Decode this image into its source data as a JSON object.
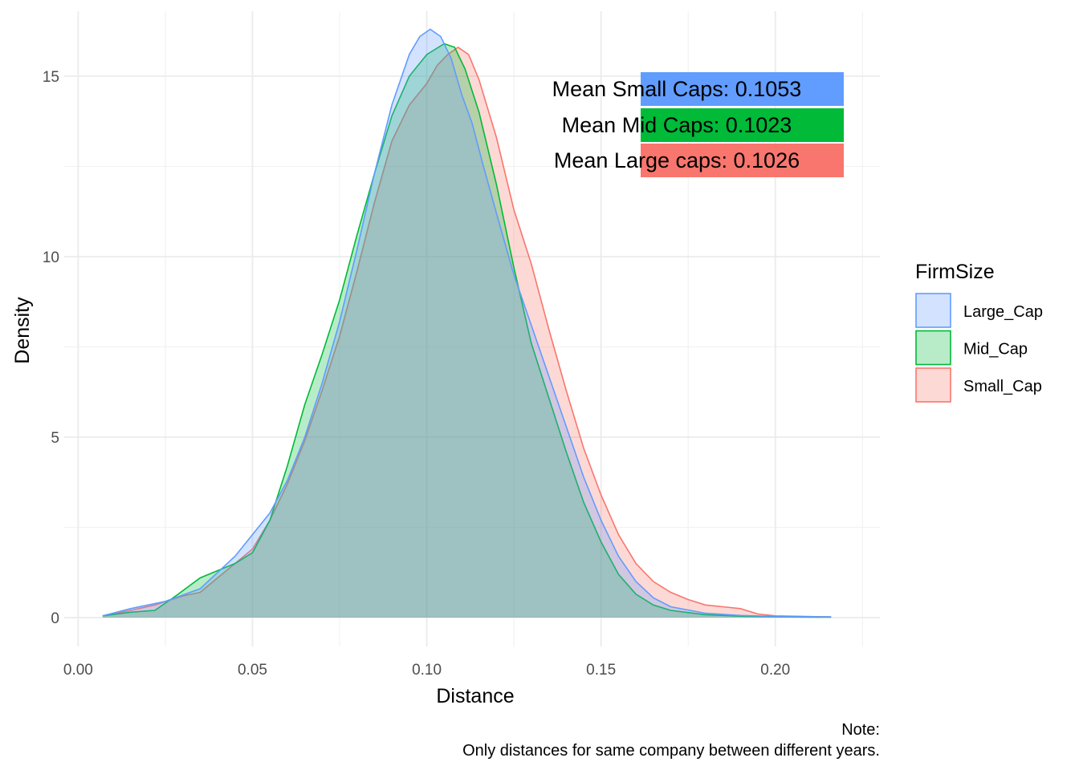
{
  "chart_data": {
    "type": "area",
    "subtype": "density",
    "title": "",
    "xlabel": "Distance",
    "ylabel": "Density",
    "xlim": [
      -0.004,
      0.23
    ],
    "ylim": [
      -0.8,
      16.8
    ],
    "x_ticks": [
      0.0,
      0.05,
      0.1,
      0.15,
      0.2
    ],
    "x_tick_labels": [
      "0.00",
      "0.05",
      "0.10",
      "0.15",
      "0.20"
    ],
    "y_ticks": [
      0,
      5,
      10,
      15
    ],
    "y_tick_labels": [
      "0",
      "5",
      "10",
      "15"
    ],
    "grid": true,
    "legend": {
      "title": "FirmSize",
      "position": "right",
      "entries": [
        {
          "label": "Large_Cap",
          "color": "#619CFF"
        },
        {
          "label": "Mid_Cap",
          "color": "#00BA38"
        },
        {
          "label": "Small_Cap",
          "color": "#F8766D"
        }
      ]
    },
    "series": [
      {
        "name": "Large_Cap",
        "color": "#619CFF",
        "x": [
          0.007,
          0.015,
          0.025,
          0.035,
          0.045,
          0.055,
          0.06,
          0.065,
          0.07,
          0.075,
          0.08,
          0.085,
          0.09,
          0.095,
          0.098,
          0.101,
          0.104,
          0.107,
          0.11,
          0.113,
          0.116,
          0.12,
          0.125,
          0.13,
          0.135,
          0.14,
          0.145,
          0.15,
          0.155,
          0.16,
          0.165,
          0.17,
          0.18,
          0.19,
          0.2,
          0.216
        ],
        "y": [
          0.05,
          0.25,
          0.45,
          0.8,
          1.7,
          2.9,
          3.8,
          5.0,
          6.5,
          8.2,
          10.2,
          12.3,
          14.2,
          15.6,
          16.1,
          16.3,
          16.1,
          15.5,
          14.5,
          13.7,
          12.6,
          11.2,
          9.5,
          8.1,
          6.7,
          5.3,
          3.9,
          2.7,
          1.7,
          1.0,
          0.55,
          0.3,
          0.12,
          0.06,
          0.03,
          0.02
        ]
      },
      {
        "name": "Mid_Cap",
        "color": "#00BA38",
        "x": [
          0.007,
          0.015,
          0.022,
          0.028,
          0.035,
          0.04,
          0.045,
          0.05,
          0.055,
          0.06,
          0.065,
          0.07,
          0.075,
          0.08,
          0.085,
          0.09,
          0.095,
          0.1,
          0.105,
          0.108,
          0.111,
          0.115,
          0.12,
          0.125,
          0.13,
          0.135,
          0.14,
          0.145,
          0.15,
          0.155,
          0.16,
          0.165,
          0.17,
          0.18,
          0.19,
          0.2,
          0.216
        ],
        "y": [
          0.05,
          0.15,
          0.2,
          0.6,
          1.1,
          1.3,
          1.5,
          1.8,
          2.7,
          4.2,
          5.9,
          7.3,
          8.8,
          10.6,
          12.3,
          13.9,
          15.0,
          15.6,
          15.9,
          15.8,
          15.2,
          14.0,
          12.0,
          9.7,
          7.6,
          6.1,
          4.6,
          3.2,
          2.1,
          1.2,
          0.65,
          0.35,
          0.2,
          0.08,
          0.04,
          0.02,
          0.01
        ]
      },
      {
        "name": "Small_Cap",
        "color": "#F8766D",
        "x": [
          0.007,
          0.015,
          0.022,
          0.03,
          0.035,
          0.04,
          0.045,
          0.05,
          0.055,
          0.06,
          0.065,
          0.07,
          0.075,
          0.08,
          0.085,
          0.09,
          0.095,
          0.1,
          0.103,
          0.106,
          0.109,
          0.112,
          0.115,
          0.12,
          0.125,
          0.13,
          0.135,
          0.14,
          0.145,
          0.15,
          0.155,
          0.16,
          0.165,
          0.17,
          0.175,
          0.18,
          0.185,
          0.19,
          0.195,
          0.2,
          0.216
        ],
        "y": [
          0.05,
          0.2,
          0.35,
          0.6,
          0.7,
          1.1,
          1.5,
          1.9,
          2.7,
          3.7,
          4.9,
          6.3,
          7.8,
          9.6,
          11.5,
          13.2,
          14.2,
          14.8,
          15.3,
          15.6,
          15.8,
          15.6,
          14.9,
          13.3,
          11.3,
          9.8,
          8.0,
          6.3,
          4.7,
          3.4,
          2.3,
          1.5,
          1.0,
          0.7,
          0.5,
          0.35,
          0.3,
          0.25,
          0.1,
          0.05,
          0.02
        ]
      }
    ],
    "annotations": [
      {
        "text": "Mean Small Caps:  0.1053",
        "color": "#619CFF"
      },
      {
        "text": "Mean Mid Caps:  0.1023",
        "color": "#00BA38"
      },
      {
        "text": "Mean Large caps:  0.1026",
        "color": "#F8766D"
      }
    ],
    "caption_lines": [
      "Note:",
      "Only distances for same company between different years."
    ]
  }
}
